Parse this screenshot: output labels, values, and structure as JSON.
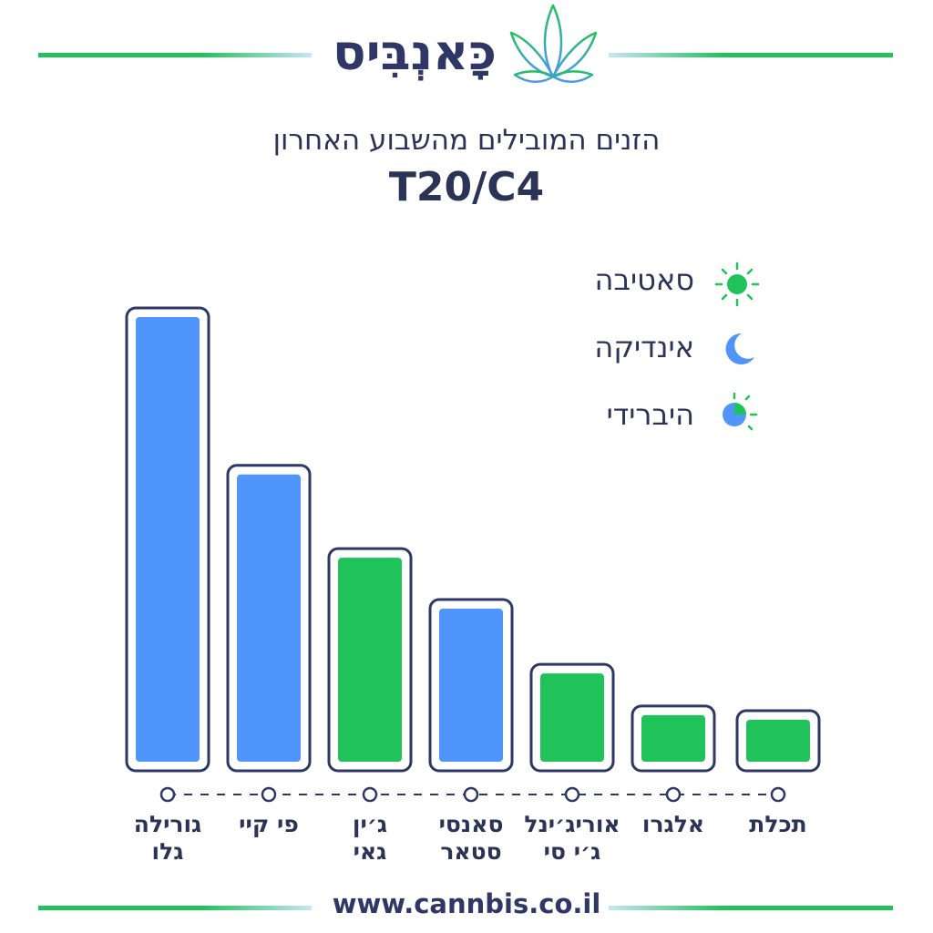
{
  "brand": {
    "logo_text": "כָּאנְבִּיס",
    "accent_green": "#1fc35a",
    "accent_blue": "#4f95fb",
    "dark": "#2f3766"
  },
  "header": {
    "subtitle": "הזנים המובילים מהשבוע האחרון",
    "title": "T20/C4"
  },
  "legend": [
    {
      "label": "סאטיבה",
      "icon": "sun-icon",
      "color": "#1fc35a"
    },
    {
      "label": "אינדיקה",
      "icon": "moon-icon",
      "color": "#4f95fb"
    },
    {
      "label": "היברידי",
      "icon": "hybrid-icon",
      "color": "#4f95fb"
    }
  ],
  "chart_data": {
    "type": "bar",
    "title": "T20/C4",
    "subtitle": "הזנים המובילים מהשבוע האחרון",
    "categories": [
      "גורילה גלו",
      "פי קיי",
      "ג׳ין גאי",
      "סאנסי סטאר",
      "אוריג׳ינל ג׳י סי",
      "אלגרו",
      "תכלת"
    ],
    "category_lines": [
      [
        "גורילה",
        "גלו"
      ],
      [
        "פי קיי",
        ""
      ],
      [
        "ג׳ין",
        "גאי"
      ],
      [
        "סאנסי",
        "סטאר"
      ],
      [
        "אוריג׳ינל",
        "ג׳י סי"
      ],
      [
        "אלגרו",
        ""
      ],
      [
        "תכלת",
        ""
      ]
    ],
    "values": [
      100,
      66,
      48,
      37,
      23,
      14,
      13
    ],
    "types": [
      "אינדיקה",
      "אינדיקה",
      "סאטיבה",
      "אינדיקה",
      "סאטיבה",
      "סאטיבה",
      "סאטיבה"
    ],
    "colors": [
      "#4f95fb",
      "#4f95fb",
      "#1fc35a",
      "#4f95fb",
      "#1fc35a",
      "#1fc35a",
      "#1fc35a"
    ],
    "ylim": [
      0,
      100
    ],
    "grid": false,
    "legend_position": "top-right"
  },
  "footer": {
    "url": "www.cannbis.co.il"
  }
}
